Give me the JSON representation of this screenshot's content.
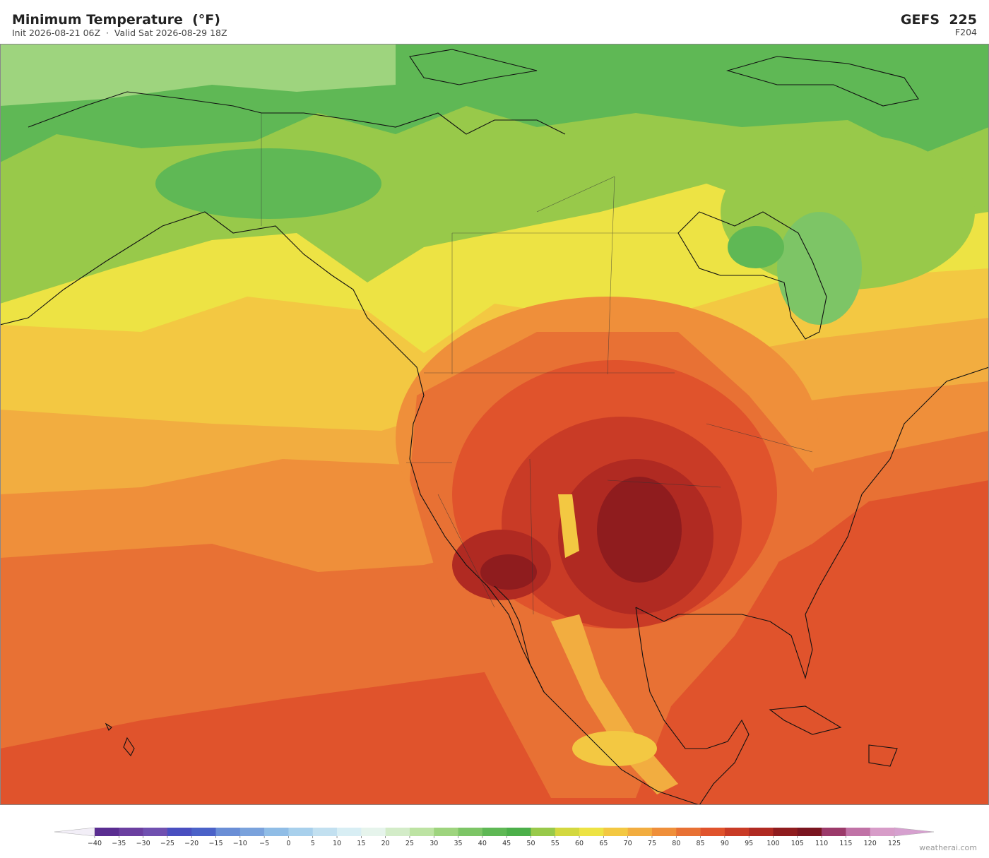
{
  "header": {
    "title": "Minimum Temperature  (°F)",
    "subtitle": "Init 2026-08-21 06Z  ·  Valid Sat 2026-08-29 18Z",
    "model": "GEFS  225",
    "forecast_hour": "F204"
  },
  "colorbar": {
    "ticks": [
      {
        "value": -40,
        "label": "−40"
      },
      {
        "value": -35,
        "label": "−35"
      },
      {
        "value": -30,
        "label": "−30"
      },
      {
        "value": -25,
        "label": "−25"
      },
      {
        "value": -20,
        "label": "−20"
      },
      {
        "value": -15,
        "label": "−15"
      },
      {
        "value": -10,
        "label": "−10"
      },
      {
        "value": -5,
        "label": "−5"
      },
      0,
      5,
      10,
      15,
      20,
      25,
      30,
      35,
      40,
      45,
      50,
      55,
      60,
      65,
      70,
      75,
      80,
      85,
      90,
      95,
      100,
      105,
      110,
      115,
      120,
      125
    ],
    "colors": [
      "#5a2d91",
      "#6b3fa0",
      "#7050b0",
      "#4a4fc0",
      "#4b62c8",
      "#6a8ed6",
      "#7aa2dc",
      "#90bde6",
      "#a8d0ec",
      "#c2e0f0",
      "#d8eef4",
      "#e6f4ec",
      "#d3ecc8",
      "#bde3a3",
      "#9ed47e",
      "#7dc566",
      "#5fb855",
      "#4caf4a",
      "#98c94a",
      "#d3d83f",
      "#ede344",
      "#f3c842",
      "#f2ad40",
      "#ef8f3a",
      "#e87134",
      "#e0532c",
      "#c93b26",
      "#b02a22",
      "#8f1c1e",
      "#7a1520",
      "#9b3a6a",
      "#c072a6",
      "#d79cc8"
    ],
    "extend_colors": [
      "#f2eef7",
      "#d6a0cf"
    ]
  },
  "credit": "weatherai.com"
}
